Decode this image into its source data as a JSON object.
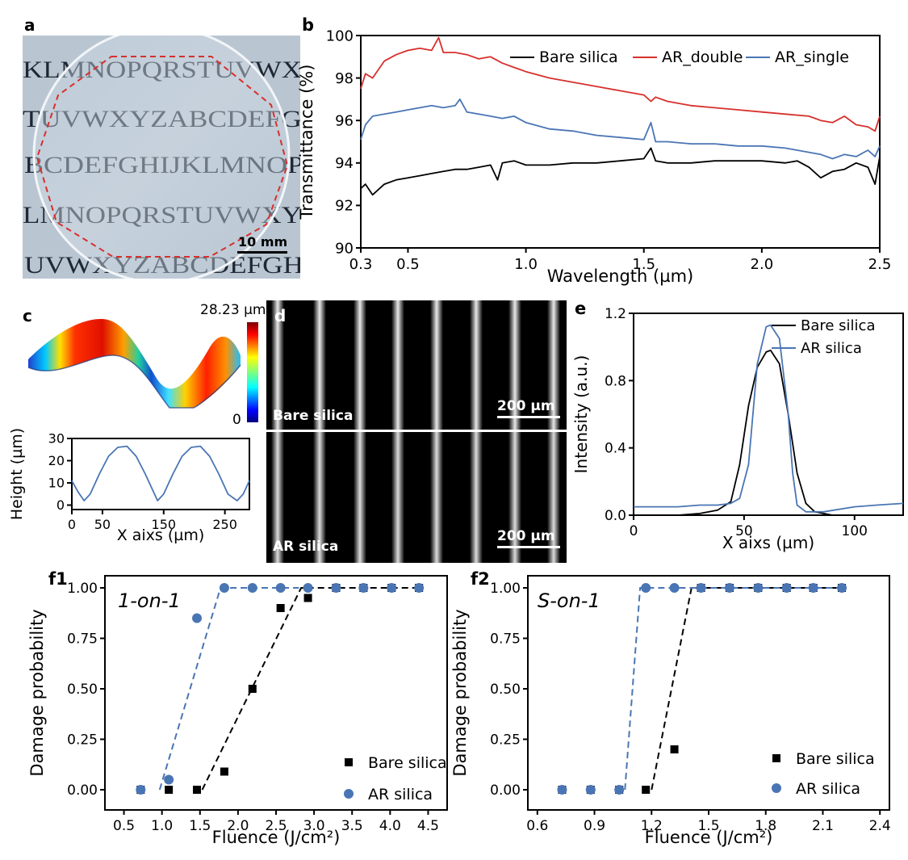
{
  "panels": {
    "a": {
      "label": "a",
      "scale_bar": "10 mm",
      "text_rows": [
        "KLMNOPQRSTUVWX",
        "TUVWXYZABCDEFG",
        "BCDEFGHIJKLMNOP",
        "LMNOPQRSTUVWXY",
        "UVWXYZABCDEFGH"
      ]
    },
    "c": {
      "label": "c",
      "colorbar_max": "28.23 µm",
      "colorbar_min": "0"
    },
    "d": {
      "label": "d",
      "top_caption": "Bare silica",
      "bottom_caption": "AR silica",
      "scale_bar_top": "200 µm",
      "scale_bar_bottom": "200 µm"
    }
  },
  "colors": {
    "bare": "#000000",
    "ar_double": "#d7302c",
    "ar_single": "#4a75b4",
    "ar_marker": "#4a75b4",
    "bare_marker": "#000000"
  },
  "chart_data": [
    {
      "id": "b",
      "label": "b",
      "type": "line",
      "xlabel": "Wavelength (µm)",
      "ylabel": "Transmittance (%)",
      "xlim": [
        0.3,
        2.5
      ],
      "ylim": [
        90,
        100
      ],
      "xticks": [
        "0.3",
        "0.5",
        "1.0",
        "1.5",
        "2.0",
        "2.5"
      ],
      "yticks": [
        "90",
        "92",
        "94",
        "96",
        "98",
        "100"
      ],
      "legend": "top-right",
      "series": [
        {
          "name": "Bare silica",
          "x": [
            0.3,
            0.32,
            0.35,
            0.4,
            0.45,
            0.5,
            0.55,
            0.6,
            0.65,
            0.7,
            0.75,
            0.8,
            0.85,
            0.88,
            0.9,
            0.95,
            1.0,
            1.1,
            1.2,
            1.3,
            1.4,
            1.5,
            1.53,
            1.55,
            1.6,
            1.7,
            1.8,
            1.9,
            2.0,
            2.1,
            2.15,
            2.2,
            2.25,
            2.3,
            2.35,
            2.4,
            2.45,
            2.48,
            2.5
          ],
          "y": [
            92.8,
            93.0,
            92.5,
            93.0,
            93.2,
            93.3,
            93.4,
            93.5,
            93.6,
            93.7,
            93.7,
            93.8,
            93.9,
            93.2,
            94.0,
            94.1,
            93.9,
            93.9,
            94.0,
            94.0,
            94.1,
            94.2,
            94.7,
            94.1,
            94.0,
            94.0,
            94.1,
            94.1,
            94.1,
            94.0,
            94.1,
            93.8,
            93.3,
            93.6,
            93.7,
            94.0,
            93.8,
            93.0,
            94.3
          ]
        },
        {
          "name": "AR_double",
          "x": [
            0.3,
            0.32,
            0.35,
            0.4,
            0.45,
            0.5,
            0.55,
            0.6,
            0.63,
            0.65,
            0.7,
            0.75,
            0.8,
            0.85,
            0.9,
            0.95,
            1.0,
            1.1,
            1.2,
            1.3,
            1.4,
            1.5,
            1.53,
            1.55,
            1.6,
            1.7,
            1.8,
            1.9,
            2.0,
            2.1,
            2.2,
            2.25,
            2.3,
            2.35,
            2.4,
            2.45,
            2.48,
            2.5
          ],
          "y": [
            97.5,
            98.2,
            98.0,
            98.8,
            99.1,
            99.3,
            99.4,
            99.3,
            99.9,
            99.2,
            99.2,
            99.1,
            98.9,
            99.0,
            98.7,
            98.5,
            98.3,
            98.0,
            97.8,
            97.6,
            97.4,
            97.2,
            96.9,
            97.1,
            96.9,
            96.7,
            96.6,
            96.5,
            96.4,
            96.3,
            96.2,
            96.0,
            95.9,
            96.2,
            95.8,
            95.7,
            95.5,
            96.2
          ]
        },
        {
          "name": "AR_single",
          "x": [
            0.3,
            0.32,
            0.35,
            0.4,
            0.45,
            0.5,
            0.55,
            0.6,
            0.65,
            0.7,
            0.72,
            0.75,
            0.8,
            0.85,
            0.9,
            0.95,
            1.0,
            1.1,
            1.2,
            1.3,
            1.4,
            1.5,
            1.53,
            1.55,
            1.6,
            1.7,
            1.8,
            1.9,
            2.0,
            2.1,
            2.2,
            2.25,
            2.3,
            2.35,
            2.4,
            2.45,
            2.48,
            2.5
          ],
          "y": [
            95.1,
            95.8,
            96.2,
            96.3,
            96.4,
            96.5,
            96.6,
            96.7,
            96.6,
            96.7,
            97.0,
            96.4,
            96.3,
            96.2,
            96.1,
            96.2,
            95.9,
            95.6,
            95.5,
            95.3,
            95.2,
            95.1,
            95.9,
            95.0,
            95.0,
            94.9,
            94.9,
            94.8,
            94.8,
            94.7,
            94.5,
            94.4,
            94.2,
            94.4,
            94.3,
            94.6,
            94.3,
            94.8
          ]
        }
      ]
    },
    {
      "id": "c2",
      "type": "line",
      "xlabel": "X aixs (µm)",
      "ylabel": "Height (µm)",
      "xlim": [
        0,
        290
      ],
      "ylim": [
        -2,
        30
      ],
      "xticks": [
        "0",
        "50",
        "150",
        "250"
      ],
      "yticks": [
        "0",
        "10",
        "20",
        "30"
      ],
      "series": [
        {
          "x": [
            0,
            10,
            20,
            30,
            45,
            60,
            75,
            90,
            105,
            120,
            135,
            140,
            150,
            165,
            180,
            195,
            210,
            225,
            240,
            255,
            270,
            280,
            290
          ],
          "y": [
            11,
            6,
            2,
            5,
            14,
            22,
            26,
            26.5,
            22,
            14,
            5,
            2,
            5,
            14,
            22,
            26,
            26.5,
            22,
            14,
            5,
            2,
            5,
            11
          ]
        }
      ]
    },
    {
      "id": "e",
      "label": "e",
      "type": "line",
      "xlabel": "X aixs (µm)",
      "ylabel": "Intensity (a.u.)",
      "xlim": [
        0,
        122
      ],
      "ylim": [
        0,
        1.2
      ],
      "xticks": [
        "0",
        "50",
        "100"
      ],
      "yticks": [
        "0.0",
        "0.4",
        "0.8",
        "1.2"
      ],
      "legend": "top-right",
      "series": [
        {
          "name": "Bare silica",
          "x": [
            0,
            10,
            20,
            30,
            38,
            44,
            48,
            52,
            56,
            60,
            62,
            66,
            70,
            74,
            78,
            82,
            90,
            100,
            110,
            122
          ],
          "y": [
            0.0,
            0.0,
            0.0,
            0.01,
            0.03,
            0.08,
            0.3,
            0.65,
            0.88,
            0.97,
            0.98,
            0.9,
            0.6,
            0.25,
            0.07,
            0.02,
            0.0,
            0.0,
            0.0,
            0.0
          ]
        },
        {
          "name": "AR silica",
          "x": [
            0,
            10,
            20,
            30,
            38,
            44,
            48,
            52,
            56,
            60,
            62,
            66,
            70,
            72,
            74,
            78,
            86,
            100,
            110,
            122
          ],
          "y": [
            0.05,
            0.05,
            0.05,
            0.06,
            0.06,
            0.07,
            0.1,
            0.3,
            0.9,
            1.12,
            1.13,
            1.05,
            0.6,
            0.25,
            0.06,
            0.02,
            0.02,
            0.05,
            0.06,
            0.07
          ]
        }
      ]
    },
    {
      "id": "f1",
      "label": "f1",
      "title": "1-on-1",
      "type": "scatter",
      "xlabel": "Fluence (J/cm²)",
      "ylabel": "Damage probability",
      "xlim": [
        0.25,
        4.75
      ],
      "ylim": [
        -0.1,
        1.06
      ],
      "xticks": [
        "0.5",
        "1.0",
        "1.5",
        "2.0",
        "2.5",
        "3.0",
        "3.5",
        "4.0",
        "4.5"
      ],
      "yticks": [
        "0.00",
        "0.25",
        "0.50",
        "0.75",
        "1.00"
      ],
      "legend": "bottom-right",
      "series": [
        {
          "name": "Bare silica",
          "marker": "square",
          "x": [
            0.72,
            1.09,
            1.46,
            1.82,
            2.19,
            2.56,
            2.92,
            3.29,
            3.65,
            4.02,
            4.38
          ],
          "y": [
            0.0,
            0.0,
            0.0,
            0.09,
            0.5,
            0.9,
            0.95,
            1.0,
            1.0,
            1.0,
            1.0
          ],
          "fit": [
            [
              1.53,
              0.0
            ],
            [
              2.83,
              1.0
            ],
            [
              4.38,
              1.0
            ]
          ]
        },
        {
          "name": "AR silica",
          "marker": "circle",
          "x": [
            0.72,
            1.09,
            1.46,
            1.82,
            2.19,
            2.56,
            2.92,
            3.29,
            3.65,
            4.02,
            4.38
          ],
          "y": [
            0.0,
            0.05,
            0.85,
            1.0,
            1.0,
            1.0,
            1.0,
            1.0,
            1.0,
            1.0,
            1.0
          ],
          "fit": [
            [
              0.97,
              0.0
            ],
            [
              1.77,
              1.0
            ],
            [
              2.8,
              1.0
            ]
          ]
        }
      ]
    },
    {
      "id": "f2",
      "label": "f2",
      "title": "S-on-1",
      "type": "scatter",
      "xlabel": "Fluence (J/cm²)",
      "ylabel": "Damage probability",
      "xlim": [
        0.55,
        2.45
      ],
      "ylim": [
        -0.1,
        1.06
      ],
      "xticks": [
        "0.6",
        "0.9",
        "1.2",
        "1.5",
        "1.8",
        "2.1",
        "2.4"
      ],
      "yticks": [
        "0.00",
        "0.25",
        "0.50",
        "0.75",
        "1.00"
      ],
      "legend": "bottom-right",
      "series": [
        {
          "name": "Bare silica",
          "marker": "square",
          "x": [
            0.73,
            0.88,
            1.03,
            1.17,
            1.32,
            1.46,
            1.61,
            1.76,
            1.91,
            2.05,
            2.2
          ],
          "y": [
            0.0,
            0.0,
            0.0,
            0.0,
            0.2,
            1.0,
            1.0,
            1.0,
            1.0,
            1.0,
            1.0
          ],
          "fit": [
            [
              1.2,
              0.0
            ],
            [
              1.41,
              1.0
            ],
            [
              2.2,
              1.0
            ]
          ]
        },
        {
          "name": "AR silica",
          "marker": "circle",
          "x": [
            0.73,
            0.88,
            1.03,
            1.17,
            1.32,
            1.46,
            1.61,
            1.76,
            1.91,
            2.05,
            2.2
          ],
          "y": [
            0.0,
            0.0,
            0.0,
            1.0,
            1.0,
            1.0,
            1.0,
            1.0,
            1.0,
            1.0,
            1.0
          ],
          "fit": [
            [
              1.06,
              0.0
            ],
            [
              1.14,
              1.0
            ],
            [
              2.2,
              1.0
            ]
          ]
        }
      ]
    }
  ]
}
